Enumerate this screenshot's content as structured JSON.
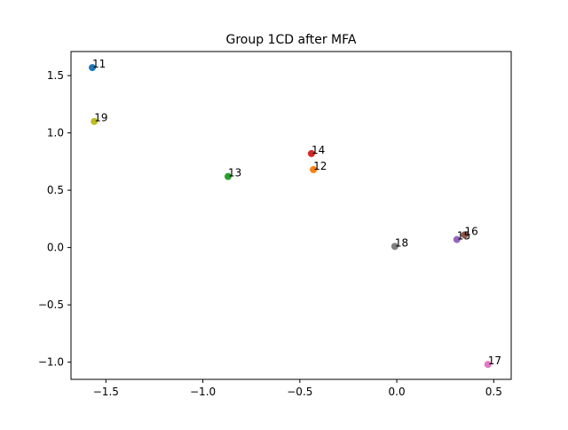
{
  "chart_data": {
    "type": "scatter",
    "title": "Group 1CD after MFA",
    "xlabel": "",
    "ylabel": "",
    "xlim": [
      -1.68,
      0.59
    ],
    "ylim": [
      -1.15,
      1.71
    ],
    "xticks": [
      -1.5,
      -1.0,
      -0.5,
      0.0,
      0.5
    ],
    "xtick_labels": [
      "−1.5",
      "−1.0",
      "−0.5",
      "0.0",
      "0.5"
    ],
    "yticks": [
      -1.0,
      -0.5,
      0.0,
      0.5,
      1.0,
      1.5
    ],
    "ytick_labels": [
      "−1.0",
      "−0.5",
      "0.0",
      "0.5",
      "1.0",
      "1.5"
    ],
    "grid": false,
    "points": [
      {
        "label": "11",
        "x": -1.57,
        "y": 1.57,
        "color": "#1f77b4"
      },
      {
        "label": "12",
        "x": -0.43,
        "y": 0.68,
        "color": "#ff7f0e"
      },
      {
        "label": "13",
        "x": -0.87,
        "y": 0.62,
        "color": "#2ca02c"
      },
      {
        "label": "14",
        "x": -0.44,
        "y": 0.82,
        "color": "#d62728"
      },
      {
        "label": "15",
        "x": 0.31,
        "y": 0.07,
        "color": "#9467bd"
      },
      {
        "label": "16",
        "x": 0.35,
        "y": 0.11,
        "color": "#8c564b"
      },
      {
        "label": "17",
        "x": 0.47,
        "y": -1.02,
        "color": "#e377c2"
      },
      {
        "label": "18",
        "x": -0.01,
        "y": 0.01,
        "color": "#7f7f7f"
      },
      {
        "label": "19",
        "x": -1.56,
        "y": 1.1,
        "color": "#bcbd22"
      }
    ]
  }
}
